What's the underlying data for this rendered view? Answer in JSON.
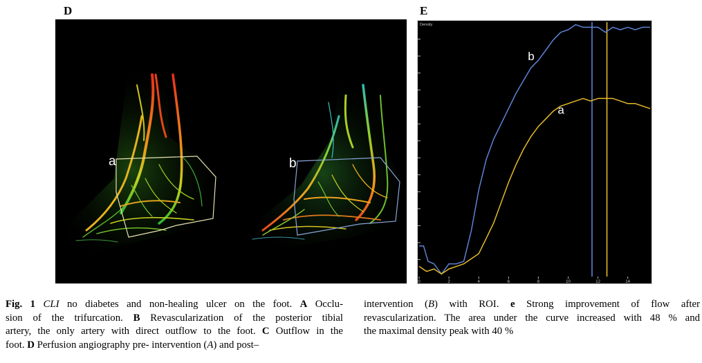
{
  "panels": {
    "d_letter": "D",
    "e_letter": "E",
    "roi_labels": {
      "a": "a",
      "b": "b"
    }
  },
  "chart_data": {
    "type": "line",
    "title": "",
    "corner_label": "Density",
    "xlabel": "",
    "ylabel": "",
    "xlim": [
      0,
      15.5
    ],
    "ylim": [
      0,
      100
    ],
    "x_ticks": [
      "0",
      "2",
      "4",
      "6",
      "8",
      "10",
      "12",
      "14"
    ],
    "grid": false,
    "colors": {
      "b": "#5d83d6",
      "a": "#e6bb2a"
    },
    "series": [
      {
        "label": "b",
        "x": [
          0,
          0.3,
          0.6,
          1.0,
          1.5,
          2.0,
          2.5,
          3.0,
          3.5,
          4.0,
          4.5,
          5.0,
          5.5,
          6.0,
          6.5,
          7.0,
          7.5,
          8.0,
          8.5,
          9.0,
          9.5,
          10.0,
          10.5,
          11.0,
          11.5,
          12.0,
          12.5,
          13.0,
          13.5,
          14.0,
          14.5,
          15.0,
          15.5
        ],
        "y": [
          12,
          12,
          6,
          5,
          1,
          5,
          5,
          6,
          18,
          34,
          46,
          54,
          60,
          66,
          72,
          77,
          82,
          85,
          89,
          93,
          96,
          97,
          99,
          98,
          98,
          98,
          96,
          98,
          97,
          98,
          97,
          98,
          98
        ]
      },
      {
        "label": "a",
        "x": [
          0,
          0.5,
          1.0,
          1.5,
          2.0,
          2.5,
          3.0,
          3.5,
          4.0,
          4.5,
          5.0,
          5.5,
          6.0,
          6.5,
          7.0,
          7.5,
          8.0,
          8.5,
          9.0,
          9.5,
          10.0,
          10.5,
          11.0,
          11.5,
          12.0,
          12.5,
          13.0,
          13.5,
          14.0,
          14.5,
          15.0,
          15.5
        ],
        "y": [
          4,
          2,
          3,
          1,
          3,
          4,
          5,
          7,
          9,
          15,
          21,
          29,
          37,
          44,
          50,
          55,
          59,
          62,
          65,
          67,
          68,
          69,
          70,
          69,
          70,
          70,
          70,
          69,
          68,
          68,
          67,
          66
        ]
      }
    ],
    "markers": [
      {
        "x": 11.6,
        "color": "#5d83d6"
      },
      {
        "x": 12.6,
        "color": "#e6bb2a"
      }
    ],
    "labels": [
      {
        "text": "b",
        "x": 7.3,
        "y": 85
      },
      {
        "text": "a",
        "x": 9.3,
        "y": 64
      }
    ]
  },
  "caption": {
    "left_lines": [
      {
        "parts": [
          {
            "t": "Fig. 1",
            "s": "b"
          },
          {
            "t": " "
          },
          {
            "t": "CLI",
            "s": "i"
          },
          {
            "t": " no diabetes and non-healing ulcer on the foot. "
          },
          {
            "t": "A",
            "s": "b"
          },
          {
            "t": " Occlu-"
          }
        ]
      },
      {
        "parts": [
          {
            "t": "sion of the trifurcation. "
          },
          {
            "t": "B",
            "s": "b"
          },
          {
            "t": " Revascularization of the posterior tibial"
          }
        ]
      },
      {
        "parts": [
          {
            "t": "artery, the only artery with direct outflow to the foot. "
          },
          {
            "t": "C",
            "s": "b"
          },
          {
            "t": " Outflow in the"
          }
        ]
      },
      {
        "parts": [
          {
            "t": "foot. "
          },
          {
            "t": "D",
            "s": "b"
          },
          {
            "t": " Perfusion angiography pre- intervention ("
          },
          {
            "t": "A",
            "s": "i"
          },
          {
            "t": ") and post–"
          }
        ]
      }
    ],
    "right_lines": [
      {
        "parts": [
          {
            "t": "intervention ("
          },
          {
            "t": "B",
            "s": "i"
          },
          {
            "t": ") with ROI. "
          },
          {
            "t": "e",
            "s": "b"
          },
          {
            "t": " Strong improvement of flow after"
          }
        ]
      },
      {
        "parts": [
          {
            "t": "revascularization. The area under the curve increased with 48 % and"
          }
        ]
      },
      {
        "parts": [
          {
            "t": "the maximal density peak with 40 %"
          }
        ]
      }
    ]
  }
}
